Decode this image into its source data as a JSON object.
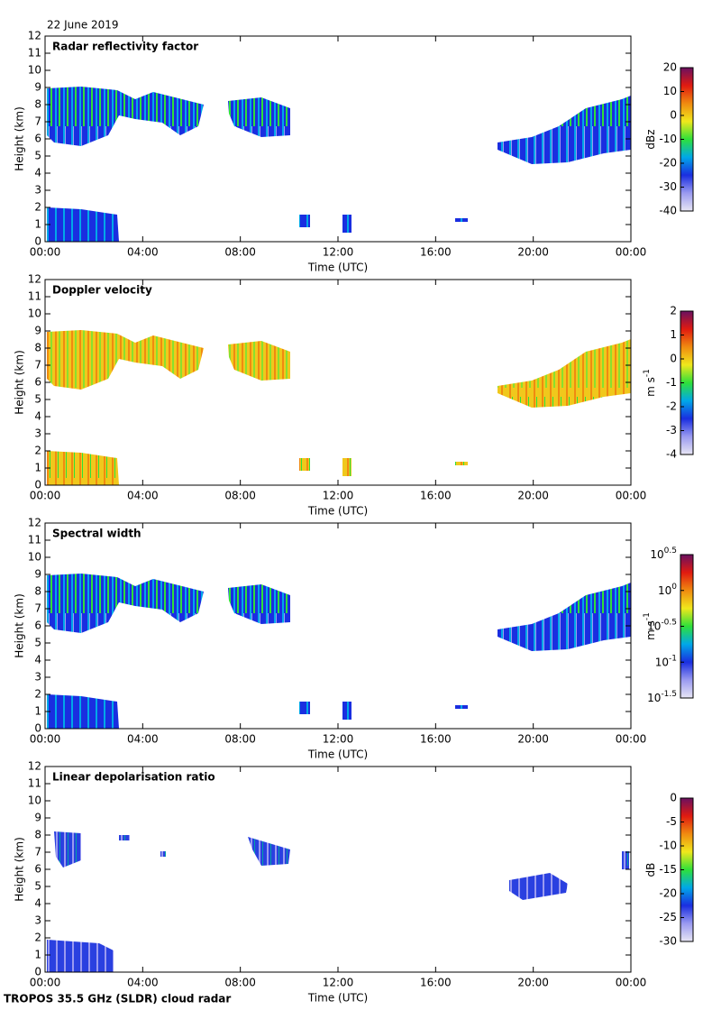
{
  "date": "22 June 2019",
  "footer": "TROPOS 35.5 GHz (SLDR) cloud radar",
  "colormap": [
    "#e8e6f4",
    "#9a9af0",
    "#1a2ee0",
    "#00a8e8",
    "#2ee03a",
    "#f0e81c",
    "#f08a10",
    "#e01a10",
    "#6a1060"
  ],
  "chart_data": [
    {
      "type": "heatmap",
      "title": "Radar reflectivity factor",
      "xlabel": "Time (UTC)",
      "ylabel": "Height (km)",
      "xlim": [
        0,
        24
      ],
      "xticks": [
        {
          "value": 0,
          "label": "00:00"
        },
        {
          "value": 4,
          "label": "04:00"
        },
        {
          "value": 8,
          "label": "08:00"
        },
        {
          "value": 12,
          "label": "12:00"
        },
        {
          "value": 16,
          "label": "16:00"
        },
        {
          "value": 20,
          "label": "20:00"
        },
        {
          "value": 24,
          "label": "00:00"
        }
      ],
      "ylim": [
        0,
        12
      ],
      "yticks": [
        0,
        1,
        2,
        3,
        4,
        5,
        6,
        7,
        8,
        9,
        10,
        11,
        12
      ],
      "colorbar": {
        "label": "dBz",
        "lim": [
          -40,
          20
        ],
        "ticks": [
          -40,
          -30,
          -20,
          -10,
          0,
          10,
          20
        ]
      }
    },
    {
      "type": "heatmap",
      "title": "Doppler velocity",
      "xlabel": "Time (UTC)",
      "ylabel": "Height (km)",
      "xlim": [
        0,
        24
      ],
      "xticks": [
        {
          "value": 0,
          "label": "00:00"
        },
        {
          "value": 4,
          "label": "04:00"
        },
        {
          "value": 8,
          "label": "08:00"
        },
        {
          "value": 12,
          "label": "12:00"
        },
        {
          "value": 16,
          "label": "16:00"
        },
        {
          "value": 20,
          "label": "20:00"
        },
        {
          "value": 24,
          "label": "00:00"
        }
      ],
      "ylim": [
        0,
        12
      ],
      "yticks": [
        0,
        1,
        2,
        3,
        4,
        5,
        6,
        7,
        8,
        9,
        10,
        11,
        12
      ],
      "colorbar": {
        "label": "m s",
        "label_exponent": "-1",
        "lim": [
          -4,
          2
        ],
        "ticks": [
          -4,
          -3,
          -2,
          -1,
          0,
          1,
          2
        ]
      }
    },
    {
      "type": "heatmap",
      "title": "Spectral width",
      "xlabel": "Time (UTC)",
      "ylabel": "Height (km)",
      "xlim": [
        0,
        24
      ],
      "xticks": [
        {
          "value": 0,
          "label": "00:00"
        },
        {
          "value": 4,
          "label": "04:00"
        },
        {
          "value": 8,
          "label": "08:00"
        },
        {
          "value": 12,
          "label": "12:00"
        },
        {
          "value": 16,
          "label": "16:00"
        },
        {
          "value": 20,
          "label": "20:00"
        },
        {
          "value": 24,
          "label": "00:00"
        }
      ],
      "ylim": [
        0,
        12
      ],
      "yticks": [
        0,
        1,
        2,
        3,
        4,
        5,
        6,
        7,
        8,
        9,
        10,
        11,
        12
      ],
      "colorbar": {
        "label": "m s",
        "label_exponent": "-1",
        "lim": [
          -1.5,
          0.5
        ],
        "log": true,
        "ticks": [
          {
            "value": -1.5,
            "label": "10",
            "exponent": "-1.5"
          },
          {
            "value": -1,
            "label": "10",
            "exponent": "-1"
          },
          {
            "value": -0.5,
            "label": "10",
            "exponent": "-0.5"
          },
          {
            "value": 0,
            "label": "10",
            "exponent": "0"
          },
          {
            "value": 0.5,
            "label": "10",
            "exponent": "0.5"
          }
        ]
      }
    },
    {
      "type": "heatmap",
      "title": "Linear depolarisation ratio",
      "xlabel": "Time (UTC)",
      "ylabel": "Height (km)",
      "xlim": [
        0,
        24
      ],
      "xticks": [
        {
          "value": 0,
          "label": "00:00"
        },
        {
          "value": 4,
          "label": "04:00"
        },
        {
          "value": 8,
          "label": "08:00"
        },
        {
          "value": 12,
          "label": "12:00"
        },
        {
          "value": 16,
          "label": "16:00"
        },
        {
          "value": 20,
          "label": "20:00"
        },
        {
          "value": 24,
          "label": "00:00"
        }
      ],
      "ylim": [
        0,
        12
      ],
      "yticks": [
        0,
        1,
        2,
        3,
        4,
        5,
        6,
        7,
        8,
        9,
        10,
        11,
        12
      ],
      "colorbar": {
        "label": "dB",
        "lim": [
          -30,
          0
        ],
        "ticks": [
          -30,
          -25,
          -20,
          -15,
          -10,
          -5,
          0
        ]
      }
    }
  ]
}
